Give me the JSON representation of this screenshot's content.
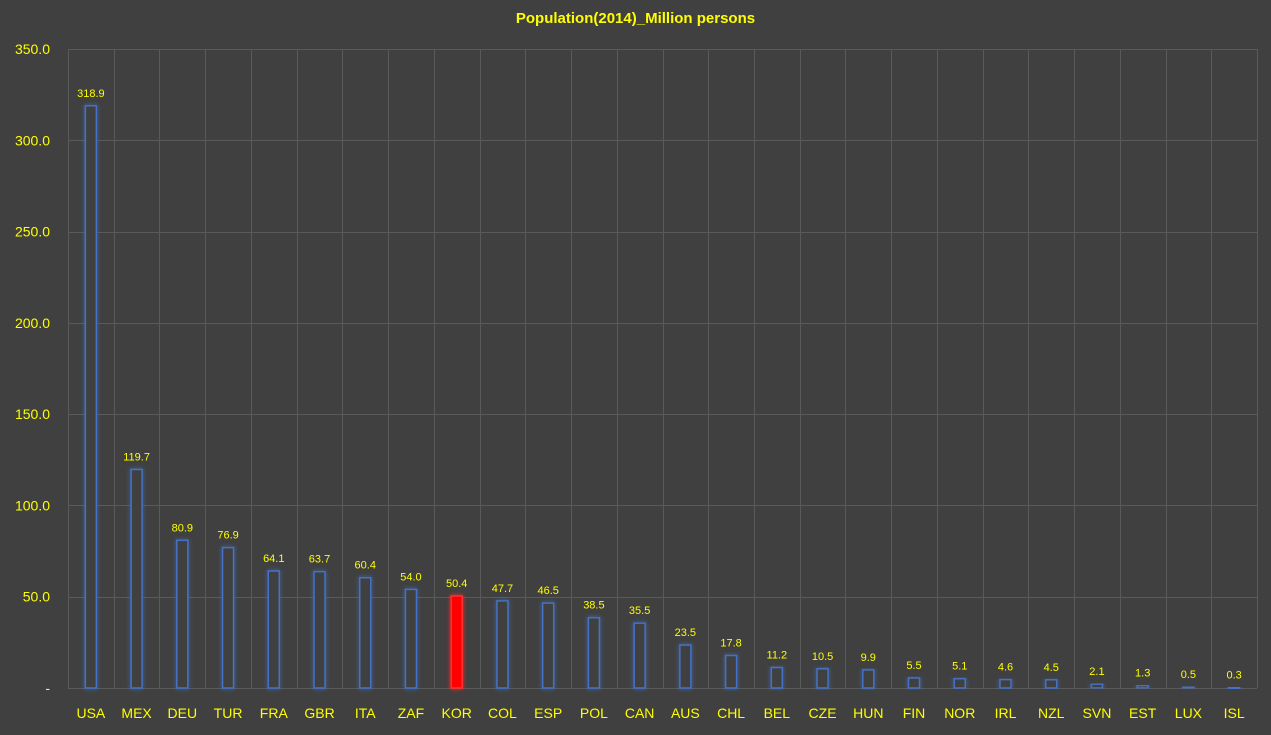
{
  "chart_data": {
    "type": "bar",
    "title": "Population(2014)_Million persons",
    "xlabel": "",
    "ylabel": "",
    "ylim": [
      0,
      350
    ],
    "yticks": [
      0,
      50,
      100,
      150,
      200,
      250,
      300,
      350
    ],
    "ytick_labels": [
      "-",
      "50.0",
      "100.0",
      "150.0",
      "200.0",
      "250.0",
      "300.0",
      "350.0"
    ],
    "grid": true,
    "legend": "none",
    "categories": [
      "USA",
      "MEX",
      "DEU",
      "TUR",
      "FRA",
      "GBR",
      "ITA",
      "ZAF",
      "KOR",
      "COL",
      "ESP",
      "POL",
      "CAN",
      "AUS",
      "CHL",
      "BEL",
      "CZE",
      "HUN",
      "FIN",
      "NOR",
      "IRL",
      "NZL",
      "SVN",
      "EST",
      "LUX",
      "ISL"
    ],
    "values": [
      318.9,
      119.7,
      80.9,
      76.9,
      64.1,
      63.7,
      60.4,
      54.0,
      50.4,
      47.7,
      46.5,
      38.5,
      35.5,
      23.5,
      17.8,
      11.2,
      10.5,
      9.9,
      5.5,
      5.1,
      4.6,
      4.5,
      2.1,
      1.3,
      0.5,
      0.3
    ],
    "value_labels": [
      "318.9",
      "119.7",
      "80.9",
      "76.9",
      "64.1",
      "63.7",
      "60.4",
      "54.0",
      "50.4",
      "47.7",
      "46.5",
      "38.5",
      "35.5",
      "23.5",
      "17.8",
      "11.2",
      "10.5",
      "9.9",
      "5.5",
      "5.1",
      "4.6",
      "4.5",
      "2.1",
      "1.3",
      "0.5",
      "0.3"
    ],
    "highlight_category": "KOR",
    "colors": {
      "background": "#404040",
      "grid": "#5a5a5a",
      "bar_fill": "#404040",
      "bar_stroke": "#4472c4",
      "bar_glow": "#2f5dc0",
      "highlight_fill": "#ff0000",
      "text": "#ffff00"
    }
  }
}
